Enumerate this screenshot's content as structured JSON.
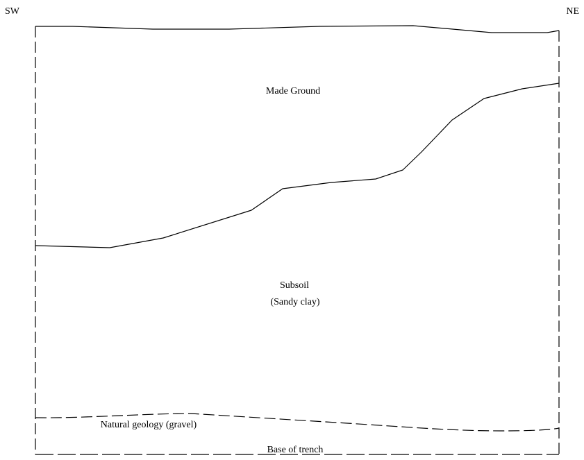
{
  "orientation": {
    "left": "SW",
    "right": "NE"
  },
  "layers": {
    "made_ground": "Made Ground",
    "subsoil_line1": "Subsoil",
    "subsoil_line2": "(Sandy clay)",
    "natural": "Natural geology (gravel)"
  },
  "base_label": "Base of trench"
}
